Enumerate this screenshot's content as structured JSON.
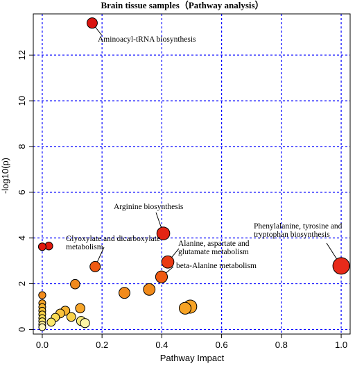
{
  "chart_data": {
    "type": "scatter",
    "title": "Brain tissue samples（Pathway analysis）",
    "xlabel": "Pathway Impact",
    "ylabel": "-log10(p)",
    "xlim": [
      -0.03,
      1.03
    ],
    "ylim": [
      -0.2,
      13.8
    ],
    "xticks": [
      "0.0",
      "0.2",
      "0.4",
      "0.6",
      "0.8",
      "1.0"
    ],
    "yticks": [
      "0",
      "2",
      "4",
      "6",
      "8",
      "10",
      "12"
    ],
    "xtick_values": [
      0,
      0.2,
      0.4,
      0.6,
      0.8,
      1.0
    ],
    "ytick_values": [
      0,
      2,
      4,
      6,
      8,
      10,
      12
    ],
    "grid": true,
    "points": [
      {
        "x": 1.0,
        "y": 2.78,
        "size": 1.0,
        "color": "#e82a1a"
      },
      {
        "x": 0.167,
        "y": 13.4,
        "size": 0.5,
        "color": "#d9140f"
      },
      {
        "x": 0.405,
        "y": 4.2,
        "size": 0.7,
        "color": "#e32414"
      },
      {
        "x": 0.42,
        "y": 2.95,
        "size": 0.65,
        "color": "#e93a14"
      },
      {
        "x": 0.399,
        "y": 2.3,
        "size": 0.62,
        "color": "#ef5a12"
      },
      {
        "x": 0.177,
        "y": 2.75,
        "size": 0.5,
        "color": "#ef5a12"
      },
      {
        "x": 0.358,
        "y": 1.75,
        "size": 0.6,
        "color": "#f18a1a"
      },
      {
        "x": 0.275,
        "y": 1.6,
        "size": 0.55,
        "color": "#f28b1c"
      },
      {
        "x": 0.495,
        "y": 1.0,
        "size": 0.72,
        "color": "#f7a325"
      },
      {
        "x": 0.478,
        "y": 0.93,
        "size": 0.62,
        "color": "#f7a325"
      },
      {
        "x": 0.11,
        "y": 1.98,
        "size": 0.42,
        "color": "#f08a1e"
      },
      {
        "x": 0.0,
        "y": 3.62,
        "size": 0.28,
        "color": "#e0180e"
      },
      {
        "x": 0.022,
        "y": 3.65,
        "size": 0.3,
        "color": "#e0180e"
      },
      {
        "x": 0.0,
        "y": 1.5,
        "size": 0.24,
        "color": "#f28b1c"
      },
      {
        "x": 0.127,
        "y": 0.93,
        "size": 0.42,
        "color": "#f6a52a"
      },
      {
        "x": 0.077,
        "y": 0.82,
        "size": 0.4,
        "color": "#f7b32f"
      },
      {
        "x": 0.06,
        "y": 0.7,
        "size": 0.37,
        "color": "#f8c33c"
      },
      {
        "x": 0.097,
        "y": 0.55,
        "size": 0.38,
        "color": "#f9d248"
      },
      {
        "x": 0.044,
        "y": 0.53,
        "size": 0.32,
        "color": "#fadc55"
      },
      {
        "x": 0.03,
        "y": 0.32,
        "size": 0.32,
        "color": "#fbe86c"
      },
      {
        "x": 0.13,
        "y": 0.37,
        "size": 0.4,
        "color": "#fbec78"
      },
      {
        "x": 0.143,
        "y": 0.28,
        "size": 0.4,
        "color": "#fdf5a6"
      },
      {
        "x": 0.0,
        "y": 1.15,
        "size": 0.22,
        "color": "#f6a52a"
      },
      {
        "x": 0.0,
        "y": 0.98,
        "size": 0.22,
        "color": "#f7b32f"
      },
      {
        "x": 0.0,
        "y": 0.82,
        "size": 0.22,
        "color": "#f8c33c"
      },
      {
        "x": 0.0,
        "y": 0.66,
        "size": 0.22,
        "color": "#f9d248"
      },
      {
        "x": 0.0,
        "y": 0.5,
        "size": 0.22,
        "color": "#fadc55"
      },
      {
        "x": 0.0,
        "y": 0.36,
        "size": 0.22,
        "color": "#fbe86c"
      },
      {
        "x": 0.0,
        "y": 0.22,
        "size": 0.22,
        "color": "#fdf099"
      },
      {
        "x": 0.0,
        "y": 0.1,
        "size": 0.22,
        "color": "#fef6b8"
      }
    ],
    "annotations": [
      {
        "lines": [
          "Aminoacyl-tRNA biosynthesis"
        ],
        "x": 0.167,
        "y": 13.4
      },
      {
        "lines": [
          "Arginine biosynthesis"
        ],
        "x": 0.405,
        "y": 4.2
      },
      {
        "lines": [
          "Glyoxylate and dicarboxylate",
          "metabolism"
        ],
        "x": 0.177,
        "y": 2.75
      },
      {
        "lines": [
          "Alanine, aspartate and",
          "glutamate metabolism"
        ],
        "x": 0.42,
        "y": 2.95
      },
      {
        "lines": [
          "beta-Alanine metabolism"
        ],
        "x": 0.399,
        "y": 2.3
      },
      {
        "lines": [
          "Phenylalanine, tyrosine and",
          "tryptophan biosynthesis"
        ],
        "x": 1.0,
        "y": 2.78
      }
    ]
  }
}
